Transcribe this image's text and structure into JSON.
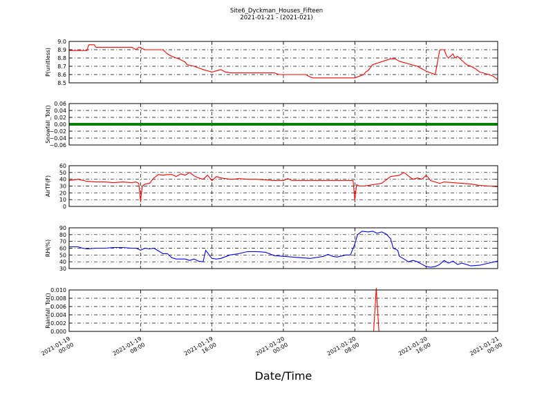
{
  "chart_data": {
    "type": "line",
    "title": "Site6_Dyckman_Houses_Fifteen",
    "subtitle": "2021-01-21 - (2021-021)",
    "xlabel": "Date/Time",
    "x_range": [
      "2021-01-19 00:00",
      "2021-01-21 00:00"
    ],
    "x_ticks": [
      {
        "line1": "2021-01-19",
        "line2": "00:00"
      },
      {
        "line1": "2021-01-19",
        "line2": "08:00"
      },
      {
        "line1": "2021-01-19",
        "line2": "16:00"
      },
      {
        "line1": "2021-01-20",
        "line2": "00:00"
      },
      {
        "line1": "2021-01-20",
        "line2": "08:00"
      },
      {
        "line1": "2021-01-20",
        "line2": "16:00"
      },
      {
        "line1": "2021-01-21",
        "line2": "00:00"
      }
    ],
    "grid": true,
    "panels": [
      {
        "ylabel": "P(unitless)",
        "color": "#ff0000",
        "ylim": [
          8.5,
          9.0
        ],
        "yticks": [
          "9.0",
          "8.9",
          "8.8",
          "8.7",
          "8.6",
          "8.5"
        ],
        "x_hours": [
          0,
          2,
          2.2,
          2.8,
          3,
          7,
          7.5,
          7.8,
          8.5,
          10.5,
          11,
          11.5,
          12,
          12.3,
          13,
          13.2,
          14,
          14.5,
          15,
          16,
          17,
          17.5,
          17.8,
          18,
          19,
          20,
          23,
          23.5,
          24,
          26.5,
          27,
          27.3,
          28,
          32,
          33,
          33.2,
          33.5,
          34,
          36,
          36.5,
          37,
          38,
          39,
          39.5,
          40,
          40.5,
          41,
          41.5,
          41.6,
          42,
          42.3,
          42.5,
          43,
          43.2,
          43.5,
          44,
          44.5,
          45,
          45.5,
          46,
          47,
          47.5,
          48
        ],
        "values": [
          8.89,
          8.89,
          8.96,
          8.96,
          8.93,
          8.93,
          8.9,
          8.93,
          8.9,
          8.9,
          8.85,
          8.82,
          8.8,
          8.79,
          8.75,
          8.72,
          8.7,
          8.68,
          8.66,
          8.63,
          8.66,
          8.63,
          8.63,
          8.62,
          8.62,
          8.62,
          8.62,
          8.6,
          8.6,
          8.6,
          8.57,
          8.56,
          8.56,
          8.56,
          8.6,
          8.63,
          8.65,
          8.72,
          8.79,
          8.79,
          8.76,
          8.73,
          8.7,
          8.67,
          8.64,
          8.62,
          8.6,
          8.89,
          8.9,
          8.9,
          8.82,
          8.8,
          8.85,
          8.8,
          8.82,
          8.77,
          8.72,
          8.7,
          8.67,
          8.63,
          8.6,
          8.58,
          8.54
        ]
      },
      {
        "ylabel": "Snowfall_Tot()",
        "color": "#007f00",
        "ylim": [
          -0.06,
          0.06
        ],
        "yticks": [
          "0.06",
          "0.04",
          "0.02",
          "0.00",
          "−0.02",
          "−0.04",
          "−0.06"
        ],
        "x_hours": [
          0,
          48
        ],
        "values": [
          0,
          0
        ]
      },
      {
        "ylabel": "AirTF(F)",
        "color": "#ff0000",
        "ylim": [
          0,
          60
        ],
        "yticks": [
          "60",
          "50",
          "40",
          "30",
          "20",
          "10",
          "0"
        ],
        "x_hours": [
          0,
          1,
          2,
          3,
          4,
          5,
          6,
          7,
          7.5,
          7.8,
          8,
          8.2,
          8.5,
          9,
          9.5,
          10,
          10.5,
          11,
          11.5,
          12,
          12.5,
          13,
          13.5,
          14,
          14.5,
          15,
          15.5,
          16,
          16.5,
          17,
          17.5,
          18,
          18.5,
          19,
          20,
          21,
          22,
          23,
          24,
          24.5,
          25,
          26,
          27,
          28,
          29,
          30,
          31,
          31.8,
          32,
          32.2,
          32.5,
          33,
          34,
          35,
          36,
          36.5,
          37,
          37.5,
          38,
          38.5,
          39,
          39.5,
          40,
          40.5,
          41,
          41.5,
          42,
          43,
          44,
          45,
          46,
          47,
          48
        ],
        "values": [
          38,
          40,
          37,
          36,
          36,
          35,
          36,
          35,
          36,
          34,
          8,
          30,
          33,
          34,
          42,
          47,
          46,
          47,
          47,
          44,
          48,
          46,
          50,
          45,
          42,
          40,
          46,
          38,
          44,
          42,
          41,
          40,
          40,
          41,
          40,
          40,
          39,
          38,
          38,
          41,
          38,
          38,
          38,
          38,
          38,
          38,
          38,
          38,
          9,
          32,
          30,
          30,
          32,
          34,
          44,
          45,
          46,
          50,
          45,
          40,
          42,
          40,
          46,
          38,
          36,
          34,
          36,
          35,
          34,
          33,
          31,
          30,
          29
        ]
      },
      {
        "ylabel": "RH(%)",
        "color": "#0000ff",
        "ylim": [
          30,
          90
        ],
        "yticks": [
          "90",
          "80",
          "70",
          "60",
          "50",
          "40",
          "30"
        ],
        "x_hours": [
          0,
          1,
          1.5,
          2,
          3,
          4,
          5,
          6,
          7,
          7.5,
          8,
          8.5,
          9,
          9.5,
          10,
          10.5,
          11,
          11.5,
          12,
          12.5,
          13,
          13.5,
          14,
          14.5,
          15,
          15.3,
          15.8,
          16,
          16.5,
          17,
          18,
          19,
          20,
          21,
          22,
          23,
          24,
          25,
          26,
          27,
          28,
          28.5,
          29,
          29.5,
          30,
          31,
          31.5,
          32,
          32.3,
          32.8,
          33.5,
          34,
          34.5,
          35,
          35.5,
          36,
          36.3,
          36.8,
          37,
          37.5,
          38,
          38.5,
          39,
          40,
          40.5,
          41,
          41.5,
          42,
          42.5,
          43,
          43.5,
          44,
          45,
          46,
          47,
          48
        ],
        "values": [
          62,
          62,
          60,
          59,
          60,
          60,
          61,
          61,
          60,
          60,
          57,
          60,
          59,
          60,
          56,
          52,
          52,
          46,
          44,
          44,
          44,
          42,
          44,
          41,
          40,
          57,
          48,
          45,
          44,
          45,
          50,
          52,
          55,
          55,
          54,
          49,
          48,
          47,
          46,
          45,
          47,
          48,
          51,
          48,
          47,
          50,
          50,
          66,
          80,
          85,
          84,
          85,
          82,
          84,
          81,
          74,
          60,
          57,
          48,
          44,
          40,
          42,
          40,
          33,
          32,
          33,
          36,
          42,
          38,
          41,
          36,
          38,
          34,
          35,
          38,
          41
        ]
      },
      {
        "ylabel": "Rainfall_Tot()",
        "color": "#ff0000",
        "ylim": [
          0,
          0.01
        ],
        "yticks": [
          "0.010",
          "0.008",
          "0.006",
          "0.004",
          "0.002",
          "0.000"
        ],
        "x_hours": [
          0,
          34.1,
          34.4,
          34.7,
          48
        ],
        "values": [
          0,
          0,
          0.0104,
          0,
          0
        ]
      }
    ]
  }
}
